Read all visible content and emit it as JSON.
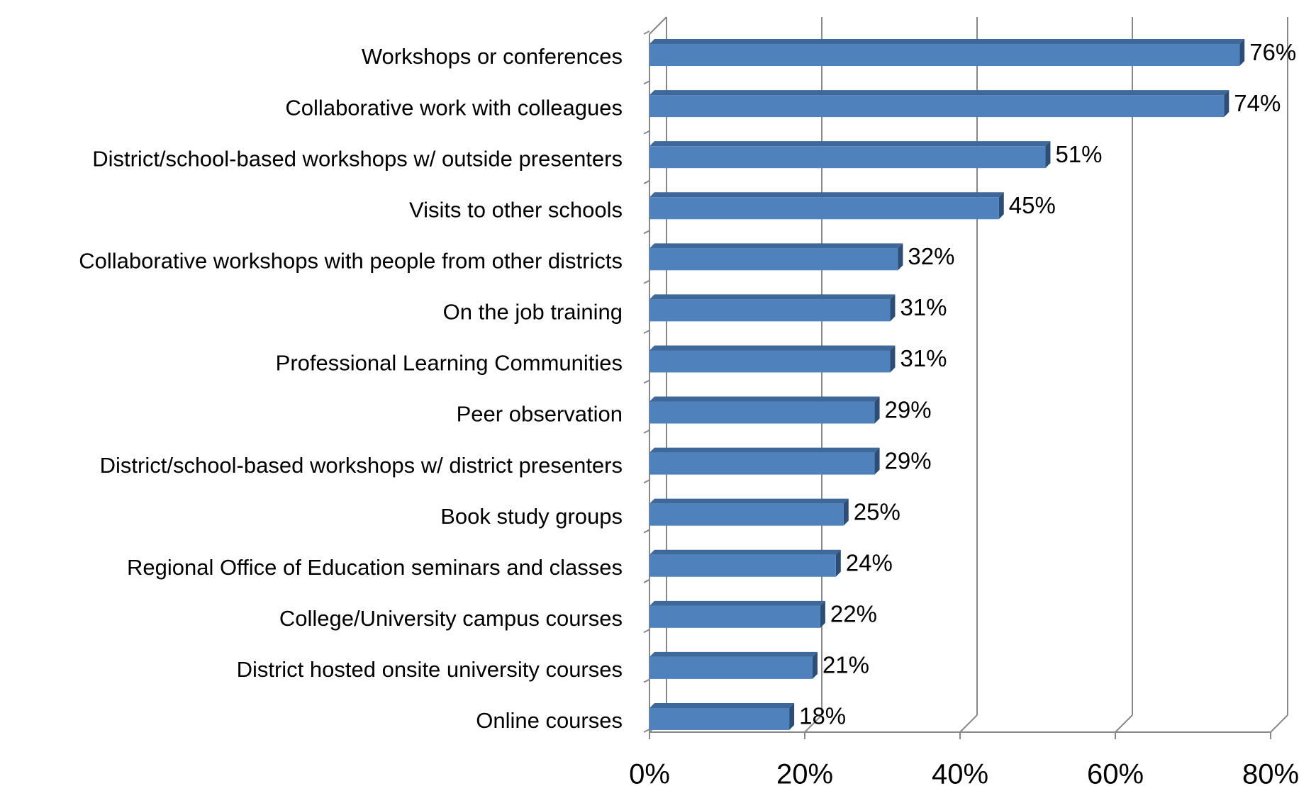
{
  "chart_data": {
    "type": "bar",
    "orientation": "horizontal",
    "categories": [
      "Workshops or conferences",
      "Collaborative work with colleagues",
      "District/school-based workshops w/ outside presenters",
      "Visits to other schools",
      "Collaborative workshops with people from other districts",
      "On the job training",
      "Professional Learning Communities",
      "Peer observation",
      "District/school-based workshops w/ district presenters",
      "Book study groups",
      "Regional Office of Education seminars and classes",
      "College/University campus courses",
      "District hosted onsite university courses",
      "Online courses"
    ],
    "values": [
      76,
      74,
      51,
      45,
      32,
      31,
      31,
      29,
      29,
      25,
      24,
      22,
      21,
      18
    ],
    "value_labels": [
      "76%",
      "74%",
      "51%",
      "45%",
      "32%",
      "31%",
      "31%",
      "29%",
      "29%",
      "25%",
      "24%",
      "22%",
      "21%",
      "18%"
    ],
    "color": "#4f81bd",
    "xlim": [
      0,
      80
    ],
    "xticks": [
      {
        "value": 0,
        "label": "0%"
      },
      {
        "value": 20,
        "label": "20%"
      },
      {
        "value": 40,
        "label": "40%"
      },
      {
        "value": 60,
        "label": "60%"
      },
      {
        "value": 80,
        "label": "80%"
      }
    ],
    "grid": true
  }
}
